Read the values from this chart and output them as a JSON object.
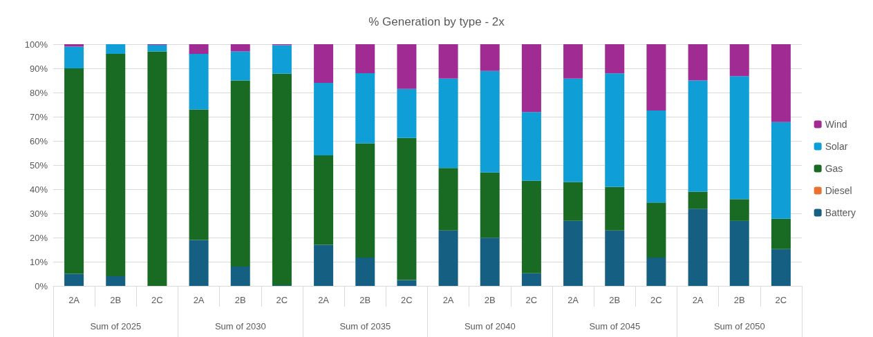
{
  "chart_data": {
    "type": "bar",
    "title": "% Generation by type - 2x",
    "stacked": true,
    "categories": [
      "2A",
      "2B",
      "2C",
      "2A",
      "2B",
      "2C",
      "2A",
      "2B",
      "2C",
      "2A",
      "2B",
      "2C",
      "2A",
      "2B",
      "2C",
      "2A",
      "2B",
      "2C"
    ],
    "annotations": [
      "Sum of 2025",
      "Sum of 2030",
      "Sum of 2035",
      "Sum of 2040",
      "Sum of 2045",
      "Sum of 2050"
    ],
    "series": [
      {
        "name": "Battery",
        "color": "#156082",
        "values": [
          5,
          4,
          0,
          19,
          8,
          0.3,
          17,
          11.7,
          2.4,
          22.9,
          19.9,
          5.2,
          26.9,
          22.9,
          11.7,
          31.9,
          26.9,
          15.2
        ]
      },
      {
        "name": "Diesel",
        "color": "#e97132",
        "values": [
          0,
          0,
          0,
          0,
          0,
          0,
          0,
          0,
          0,
          0,
          0,
          0,
          0,
          0,
          0,
          0,
          0,
          0
        ]
      },
      {
        "name": "Gas",
        "color": "#196b24",
        "values": [
          85,
          92,
          97,
          54,
          77,
          87.5,
          37,
          47.3,
          58.8,
          25.9,
          27,
          38.3,
          16.1,
          18,
          22.8,
          7.1,
          9,
          12.6
        ]
      },
      {
        "name": "Solar",
        "color": "#0f9ed5",
        "values": [
          9,
          4,
          2.7,
          23,
          12,
          11.8,
          30,
          29,
          20.3,
          37,
          42,
          28.4,
          42.8,
          47,
          38.1,
          46,
          50.9,
          40
        ]
      },
      {
        "name": "Wind",
        "color": "#a02b93",
        "values": [
          1,
          0,
          0.3,
          4,
          3,
          0.4,
          16,
          12,
          18.5,
          14.2,
          11.1,
          28.1,
          14.2,
          12.1,
          27.4,
          15,
          13.2,
          32.2
        ]
      }
    ],
    "ylim": [
      0,
      100
    ],
    "yticks": [
      {
        "value": 0,
        "label": "0%"
      },
      {
        "value": 10,
        "label": "10%"
      },
      {
        "value": 20,
        "label": "20%"
      },
      {
        "value": 30,
        "label": "30%"
      },
      {
        "value": 40,
        "label": "40%"
      },
      {
        "value": 50,
        "label": "50%"
      },
      {
        "value": 60,
        "label": "60%"
      },
      {
        "value": 70,
        "label": "70%"
      },
      {
        "value": 80,
        "label": "80%"
      },
      {
        "value": 90,
        "label": "90%"
      },
      {
        "value": 100,
        "label": "100%"
      }
    ],
    "grid": "y",
    "legend": "right"
  }
}
